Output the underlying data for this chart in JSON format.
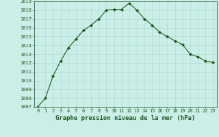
{
  "x": [
    0,
    1,
    2,
    3,
    4,
    5,
    6,
    7,
    8,
    9,
    10,
    11,
    12,
    13,
    14,
    15,
    16,
    17,
    18,
    19,
    20,
    21,
    22,
    23
  ],
  "y": [
    1007,
    1008,
    1010.5,
    1012.2,
    1013.7,
    1014.7,
    1015.7,
    1016.3,
    1017.0,
    1018.0,
    1018.1,
    1018.1,
    1018.8,
    1018.0,
    1017.0,
    1016.3,
    1015.5,
    1015.0,
    1014.5,
    1014.1,
    1013.0,
    1012.7,
    1012.2,
    1012.1
  ],
  "bg_color": "#cceee8",
  "line_color": "#1a5c1a",
  "marker": "D",
  "marker_size": 2.2,
  "grid_color": "#aaddcc",
  "xlabel": "Graphe pression niveau de la mer (hPa)",
  "xlabel_color": "#1a5c1a",
  "ylim": [
    1007,
    1019
  ],
  "xlim_min": -0.5,
  "xlim_max": 23.5,
  "ytick_step": 1,
  "xtick_labels": [
    "0",
    "1",
    "2",
    "3",
    "4",
    "5",
    "6",
    "7",
    "8",
    "9",
    "10",
    "11",
    "12",
    "13",
    "14",
    "15",
    "16",
    "17",
    "18",
    "19",
    "20",
    "21",
    "22",
    "23"
  ],
  "tick_color": "#1a5c1a",
  "spine_color": "#336633",
  "figsize": [
    3.2,
    2.0
  ],
  "dpi": 100,
  "tick_fontsize": 5,
  "xlabel_fontsize": 6.5
}
